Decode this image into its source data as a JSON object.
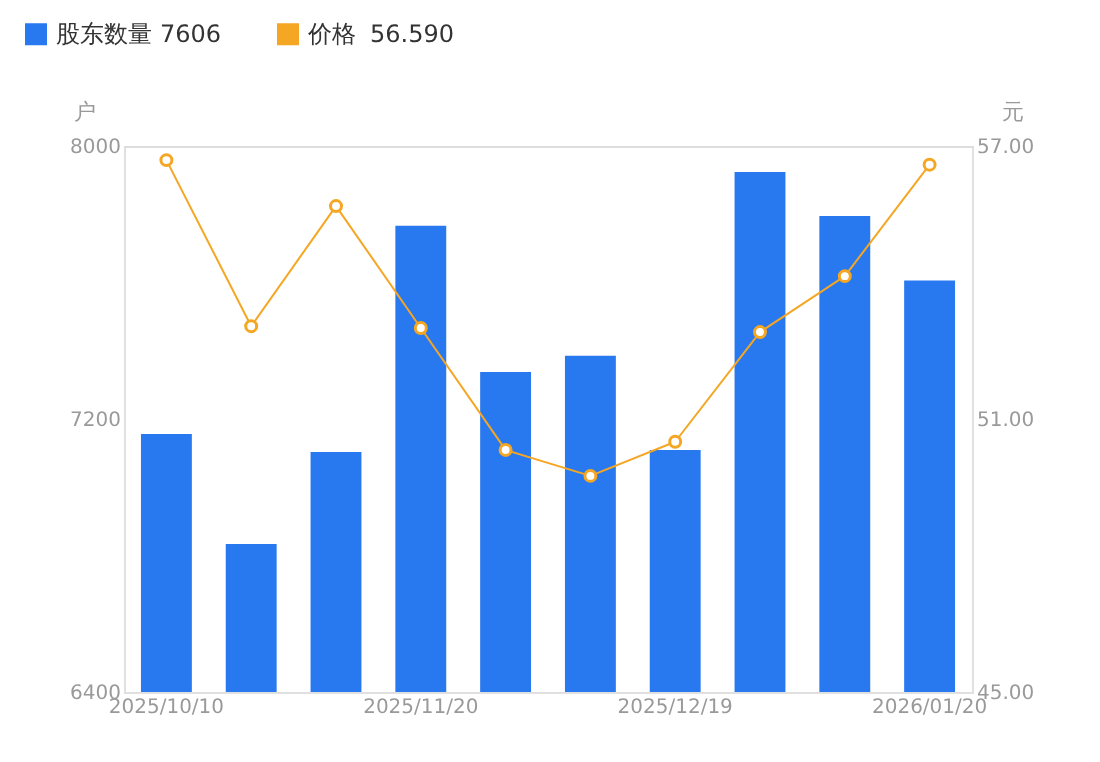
{
  "chart_data": {
    "type": "bar",
    "categories": [
      "2025/10/10",
      null,
      null,
      "2025/11/20",
      null,
      null,
      "2025/12/19",
      null,
      null,
      "2026/01/20"
    ],
    "ylabel": "户",
    "y2label": "元",
    "series": [
      {
        "name": "股东数量",
        "type": "bar",
        "color": "#2878f0",
        "values": [
          7156,
          6834,
          7103,
          7766,
          7338,
          7385,
          7109,
          7924,
          7795,
          7606
        ]
      },
      {
        "name": "价格",
        "type": "line",
        "axis": "y2",
        "color": "#f5a623",
        "marker": "circle",
        "values": [
          56.69,
          53.04,
          55.68,
          53.0,
          50.32,
          49.75,
          50.5,
          52.91,
          54.14,
          56.59
        ]
      }
    ],
    "annotations": [
      "7606",
      "56.590"
    ],
    "ylim": [
      6400,
      8000
    ],
    "yticks": [
      6400,
      7200,
      8000
    ],
    "y2lim": [
      45,
      57
    ],
    "y2ticks": [
      {
        "value": 45,
        "label": "45.00"
      },
      {
        "value": 51,
        "label": "51.00"
      },
      {
        "value": 57,
        "label": "57.00"
      }
    ],
    "grid": false,
    "legend": "top left"
  }
}
